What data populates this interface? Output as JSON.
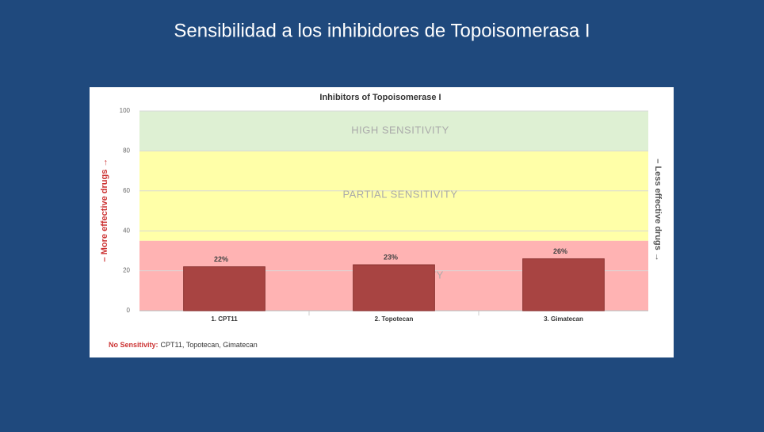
{
  "slide_title": "Sensibilidad a los inhibidores de Topoisomerasa I",
  "chart_data": {
    "type": "bar",
    "title": "Inhibitors of Topoisomerase I",
    "categories": [
      "1. CPT11",
      "2. Topotecan",
      "3. Gimatecan"
    ],
    "values": [
      22,
      23,
      26
    ],
    "value_labels": [
      "22%",
      "23%",
      "26%"
    ],
    "color": "#a84442",
    "ylim": [
      0,
      100
    ],
    "yticks": [
      0,
      20,
      40,
      60,
      80,
      100
    ],
    "grid": true,
    "bands": [
      {
        "label": "HIGH SENSITIVITY",
        "from": 80,
        "to": 100,
        "color": "#def0d3"
      },
      {
        "label": "PARTIAL SENSITIVITY",
        "from": 35,
        "to": 80,
        "color": "#ffffa8"
      },
      {
        "label": "NO SENSITIVITY",
        "from": 0,
        "to": 35,
        "color": "#ffb3b3"
      }
    ],
    "y_label_left": "– More effective drugs →",
    "y_label_right": "– Less effective drugs →",
    "footnote": {
      "label": "No Sensitivity:",
      "text": "CPT11, Topotecan, Gimatecan"
    }
  }
}
